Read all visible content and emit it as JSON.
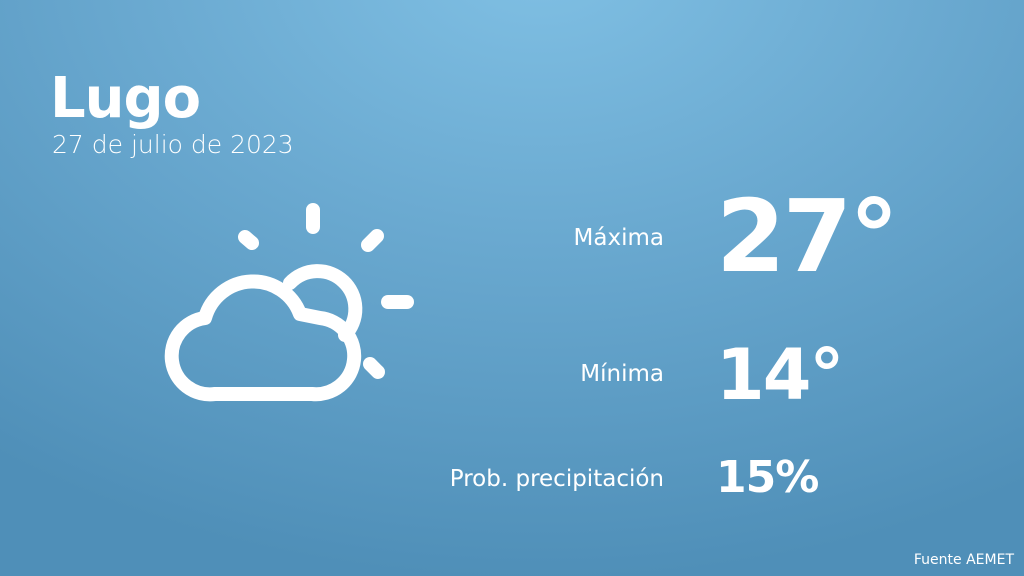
{
  "location": {
    "city": "Lugo",
    "date": "27 de julio de 2023"
  },
  "weather": {
    "icon": "partly-cloudy-icon",
    "max_label": "Máxima",
    "max_value": "27°",
    "min_label": "Mínima",
    "min_value": "14°",
    "precip_label": "Prob. precipitación",
    "precip_value": "15%"
  },
  "footer": {
    "source": "Fuente AEMET"
  }
}
